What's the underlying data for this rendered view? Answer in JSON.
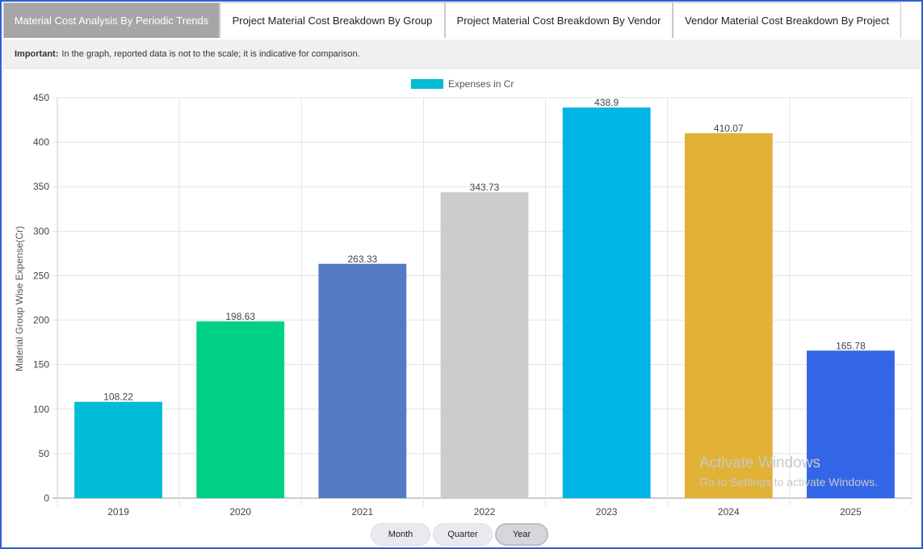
{
  "tabs": [
    {
      "label": "Material Cost Analysis By Periodic Trends",
      "active": true
    },
    {
      "label": "Project Material Cost Breakdown By Group",
      "active": false
    },
    {
      "label": "Project Material Cost Breakdown By Vendor",
      "active": false
    },
    {
      "label": "Vendor Material Cost Breakdown By Project",
      "active": false
    }
  ],
  "notice": {
    "label": "Important:",
    "text": "In the graph, reported data is not to the scale; it is indicative for comparison."
  },
  "period_buttons": [
    {
      "label": "Month",
      "active": false
    },
    {
      "label": "Quarter",
      "active": false
    },
    {
      "label": "Year",
      "active": true
    }
  ],
  "watermark": {
    "line1": "Activate Windows",
    "line2": "Go to Settings to activate Windows."
  },
  "chart_data": {
    "type": "bar",
    "categories": [
      "2019",
      "2020",
      "2021",
      "2022",
      "2023",
      "2024",
      "2025"
    ],
    "series": [
      {
        "name": "Expenses in Cr",
        "values": [
          108.22,
          198.63,
          263.33,
          343.73,
          438.9,
          410.07,
          165.78
        ]
      }
    ],
    "value_labels": [
      "108.22",
      "198.63",
      "263.33",
      "343.73",
      "438.9",
      "410.07",
      "165.78"
    ],
    "bar_colors": [
      "#00bcd4",
      "#00d084",
      "#527bc4",
      "#cccccc",
      "#00b4e6",
      "#e2b236",
      "#3366e6"
    ],
    "legend_color": "#00bcd4",
    "legend_position": "top-center",
    "ylabel": "Material Group Wise Expense(Cr)",
    "xlabel": "",
    "ylim": [
      0,
      450
    ],
    "yticks": [
      0,
      50,
      100,
      150,
      200,
      250,
      300,
      350,
      400,
      450
    ],
    "grid": true
  }
}
